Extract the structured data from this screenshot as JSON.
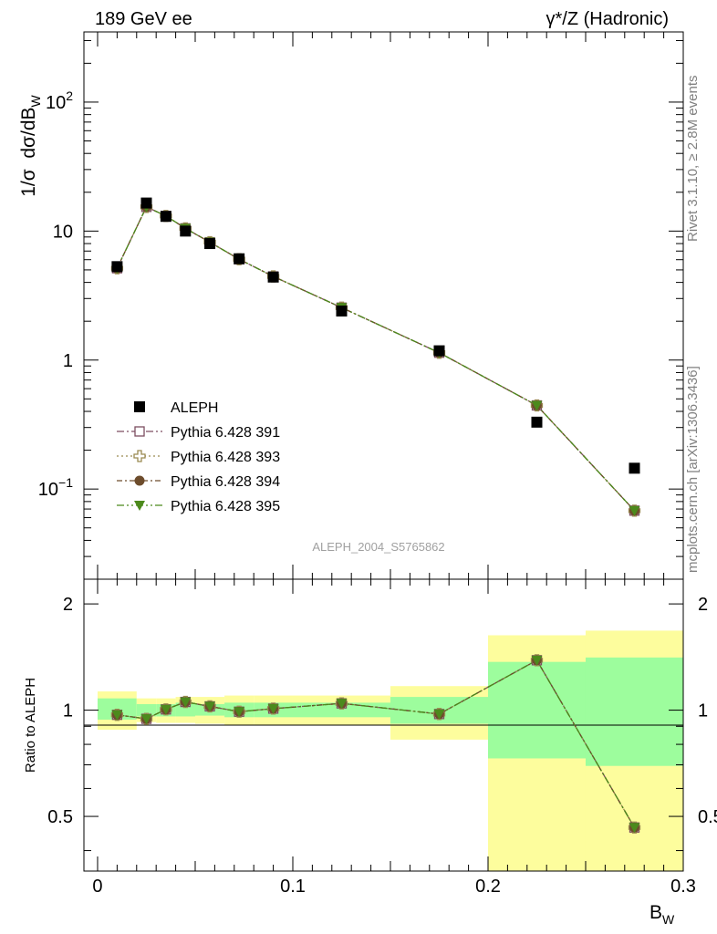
{
  "header": {
    "left_title": "189 GeV ee",
    "right_title": "γ*/Z (Hadronic)"
  },
  "side_labels": {
    "rivet": "Rivet 3.1.10, ≥ 2.8M events",
    "mcplots": "mcplots.cern.ch [arXiv:1306.3436]"
  },
  "analysis_label": "ALEPH_2004_S5765862",
  "chart_data": [
    {
      "type": "scatter",
      "panel": "main",
      "ylabel": "1/σ dσ/dB_W",
      "yscale": "log",
      "xlim": [
        -0.007,
        0.3
      ],
      "ylim": [
        0.02,
        350
      ],
      "y_tick_labels": [
        {
          "value": 0.1,
          "base": "10",
          "exp": "−1"
        },
        {
          "value": 1,
          "text": "1"
        },
        {
          "value": 10,
          "text": "10"
        },
        {
          "value": 100,
          "base": "10",
          "exp": "2"
        }
      ],
      "legend_position": "lower-left",
      "x": [
        0.01,
        0.025,
        0.035,
        0.045,
        0.0575,
        0.0725,
        0.09,
        0.125,
        0.175,
        0.225,
        0.275
      ],
      "series": [
        {
          "name": "ALEPH",
          "color": "#000000",
          "marker": "square",
          "values": [
            5.3,
            16.5,
            13.0,
            10.0,
            8.0,
            6.1,
            4.4,
            2.4,
            1.18,
            0.33,
            0.145
          ]
        },
        {
          "name": "Pythia 6.428 391",
          "color": "#7d4e60",
          "marker": "open-square",
          "dash": "8,3,2,3",
          "values": [
            5.15,
            15.4,
            13.1,
            10.5,
            8.2,
            6.05,
            4.45,
            2.55,
            1.14,
            0.445,
            0.068
          ]
        },
        {
          "name": "Pythia 6.428 393",
          "color": "#9a8a52",
          "marker": "open-cross",
          "dash": "2,3",
          "values": [
            5.15,
            15.4,
            13.1,
            10.5,
            8.2,
            6.05,
            4.45,
            2.55,
            1.14,
            0.445,
            0.068
          ]
        },
        {
          "name": "Pythia 6.428 394",
          "color": "#6d4c2c",
          "marker": "circle",
          "dash": "6,3,2,3",
          "values": [
            5.15,
            15.4,
            13.1,
            10.5,
            8.2,
            6.05,
            4.45,
            2.55,
            1.14,
            0.445,
            0.068
          ]
        },
        {
          "name": "Pythia 6.428 395",
          "color": "#4c8a1c",
          "marker": "triangle-down",
          "dash": "8,3,2,3,2,3",
          "values": [
            5.15,
            15.4,
            13.1,
            10.5,
            8.2,
            6.05,
            4.45,
            2.55,
            1.14,
            0.445,
            0.068
          ]
        }
      ]
    },
    {
      "type": "scatter",
      "panel": "ratio",
      "ylabel": "Ratio to ALEPH",
      "xlabel": "B_W",
      "xlim": [
        -0.007,
        0.3
      ],
      "ylim": [
        0.35,
        2.35
      ],
      "x_tick_labels": [
        "0",
        "0.1",
        "0.2",
        "0.3"
      ],
      "y_tick_labels": [
        "0.5",
        "1",
        "2"
      ],
      "reference_line": 1,
      "bins": [
        [
          0.0,
          0.02
        ],
        [
          0.02,
          0.03
        ],
        [
          0.03,
          0.04
        ],
        [
          0.04,
          0.05
        ],
        [
          0.05,
          0.065
        ],
        [
          0.065,
          0.08
        ],
        [
          0.08,
          0.1
        ],
        [
          0.1,
          0.15
        ],
        [
          0.15,
          0.2
        ],
        [
          0.2,
          0.25
        ],
        [
          0.25,
          0.3
        ]
      ],
      "band_inner": [
        [
          0.94,
          1.08
        ],
        [
          0.96,
          1.04
        ],
        [
          0.96,
          1.04
        ],
        [
          0.96,
          1.05
        ],
        [
          0.965,
          1.04
        ],
        [
          0.955,
          1.05
        ],
        [
          0.955,
          1.05
        ],
        [
          0.955,
          1.05
        ],
        [
          0.915,
          1.09
        ],
        [
          0.73,
          1.37
        ],
        [
          0.695,
          1.41
        ]
      ],
      "band_outer": [
        [
          0.88,
          1.13
        ],
        [
          0.925,
          1.08
        ],
        [
          0.92,
          1.08
        ],
        [
          0.92,
          1.09
        ],
        [
          0.915,
          1.09
        ],
        [
          0.905,
          1.1
        ],
        [
          0.905,
          1.1
        ],
        [
          0.905,
          1.1
        ],
        [
          0.825,
          1.17
        ],
        [
          0.35,
          1.63
        ],
        [
          0.35,
          1.68
        ]
      ],
      "band_colors": {
        "inner": "#9dfd9d",
        "outer": "#fdfd9d"
      },
      "x": [
        0.01,
        0.025,
        0.035,
        0.045,
        0.0575,
        0.0725,
        0.09,
        0.125,
        0.175,
        0.225,
        0.275
      ],
      "values": [
        0.97,
        0.945,
        1.005,
        1.055,
        1.025,
        0.99,
        1.01,
        1.045,
        0.975,
        1.385,
        0.465
      ]
    }
  ]
}
